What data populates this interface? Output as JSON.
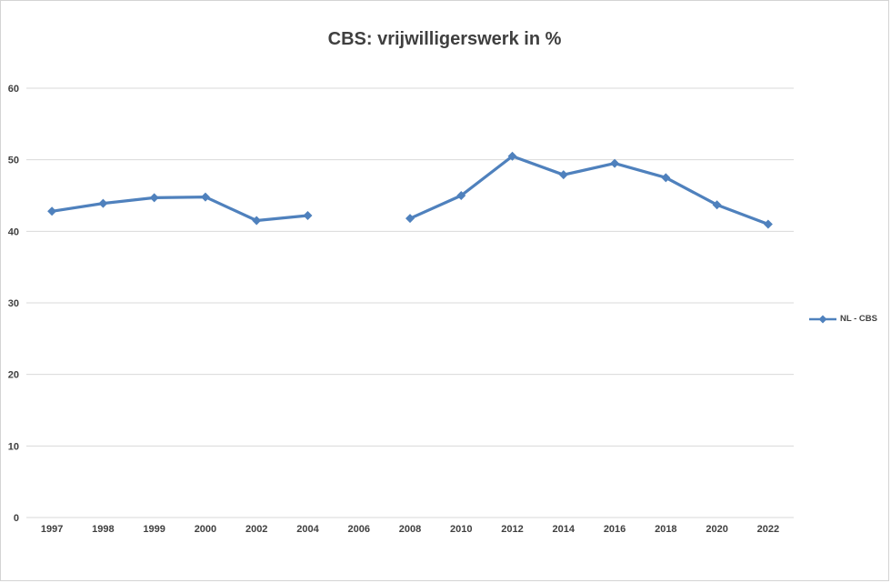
{
  "chart_data": {
    "type": "line",
    "title": "CBS: vrijwilligerswerk in %",
    "categories": [
      "1997",
      "1998",
      "1999",
      "2000",
      "2002",
      "2004",
      "2006",
      "2008",
      "2010",
      "2012",
      "2014",
      "2016",
      "2018",
      "2020",
      "2022"
    ],
    "series": [
      {
        "name": "NL - CBS",
        "values": [
          42.8,
          43.9,
          44.7,
          44.8,
          41.5,
          42.2,
          null,
          41.8,
          45.0,
          50.5,
          47.9,
          49.5,
          47.5,
          43.7,
          41.0
        ]
      }
    ],
    "xlabel": "",
    "ylabel": "",
    "ylim": [
      0,
      60
    ],
    "yticks": [
      0,
      10,
      20,
      30,
      40,
      50,
      60
    ],
    "grid": true,
    "legend_position": "right",
    "marker": "diamond"
  },
  "colors": {
    "line": "#4F81BD",
    "grid": "#D9D9D9",
    "text": "#404040",
    "border": "#D4D4D4",
    "background": "#FFFFFF"
  }
}
